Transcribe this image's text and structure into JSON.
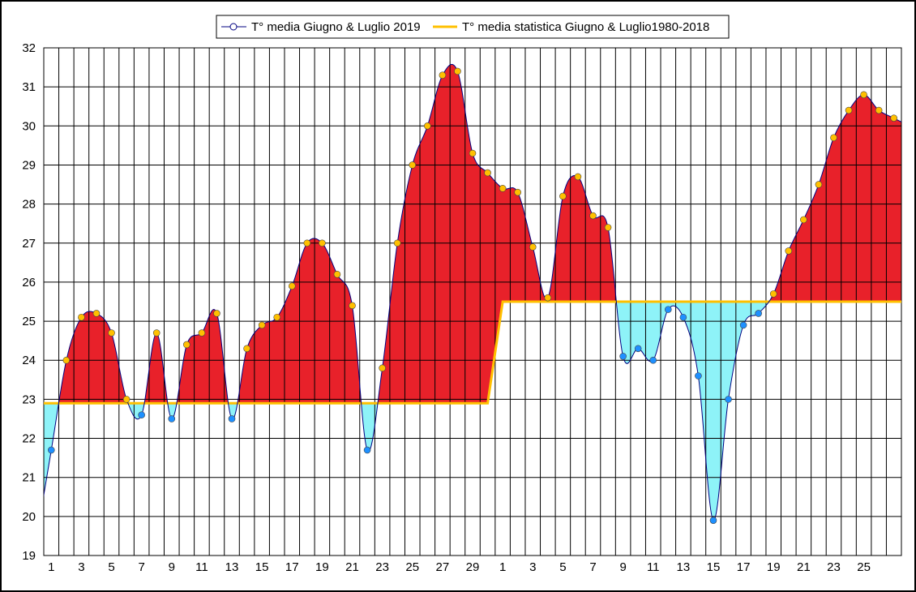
{
  "chart_data": {
    "type": "area",
    "title": "",
    "xlabel": "",
    "ylabel": "",
    "ylim": [
      19,
      32
    ],
    "y_ticks": [
      19,
      20,
      21,
      22,
      23,
      24,
      25,
      26,
      27,
      28,
      29,
      30,
      31,
      32
    ],
    "x_tick_labels": [
      "1",
      "3",
      "5",
      "7",
      "9",
      "11",
      "13",
      "15",
      "17",
      "19",
      "21",
      "23",
      "25",
      "27",
      "29",
      "1",
      "3",
      "5",
      "7",
      "9",
      "11",
      "13",
      "15",
      "17",
      "19",
      "21",
      "23",
      "25"
    ],
    "grid": true,
    "legend_position": "top-center",
    "series": [
      {
        "name": "T° media Giugno & Luglio 2019",
        "color": "#000080",
        "values": [
          21.7,
          24.0,
          25.1,
          25.2,
          24.7,
          23.0,
          22.6,
          24.7,
          22.5,
          24.4,
          24.7,
          25.2,
          22.5,
          24.3,
          24.9,
          25.1,
          25.9,
          27.0,
          27.0,
          26.2,
          25.4,
          21.7,
          23.8,
          27.0,
          29.0,
          30.0,
          31.3,
          31.4,
          29.3,
          28.8,
          28.4,
          28.3,
          26.9,
          25.6,
          28.2,
          28.7,
          27.7,
          27.4,
          24.1,
          24.3,
          24.0,
          25.3,
          25.1,
          23.6,
          19.9,
          23.0,
          24.9,
          25.2,
          25.7,
          26.8,
          27.6,
          28.5,
          29.7,
          30.4,
          30.8,
          30.4,
          30.2
        ]
      },
      {
        "name": "T° media statistica Giugno & Luglio1980-2018",
        "color": "#FFC000",
        "values": [
          22.9,
          22.9,
          22.9,
          22.9,
          22.9,
          22.9,
          22.9,
          22.9,
          22.9,
          22.9,
          22.9,
          22.9,
          22.9,
          22.9,
          22.9,
          22.9,
          22.9,
          22.9,
          22.9,
          22.9,
          22.9,
          22.9,
          22.9,
          22.9,
          22.9,
          22.9,
          22.9,
          22.9,
          22.9,
          22.9,
          25.5,
          25.5,
          25.5,
          25.5,
          25.5,
          25.5,
          25.5,
          25.5,
          25.5,
          25.5,
          25.5,
          25.5,
          25.5,
          25.5,
          25.5,
          25.5,
          25.5,
          25.5,
          25.5,
          25.5,
          25.5,
          25.5,
          25.5,
          25.5,
          25.5,
          25.5,
          25.5
        ]
      }
    ],
    "colors": {
      "above_fill": "#E8212A",
      "below_fill": "#8EF3F8",
      "marker_above": "#FFC000",
      "marker_below": "#1E90FF"
    }
  }
}
